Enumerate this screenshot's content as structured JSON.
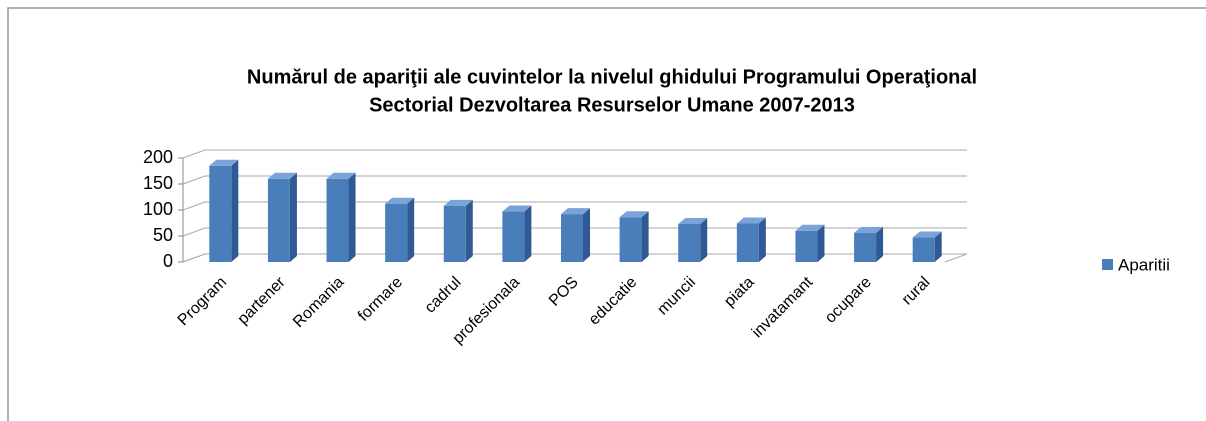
{
  "chart_data": {
    "type": "bar3d",
    "title": "Numărul de apariţii ale cuvintelor la nivelul ghidului Programului Operaţional",
    "subtitle": "Sectorial Dezvoltarea Resurselor Umane 2007-2013",
    "categories": [
      "Program",
      "partener",
      "Romania",
      "formare",
      "cadrul",
      "profesionala",
      "POS",
      "educatie",
      "muncii",
      "piata",
      "invatamant",
      "ocupare",
      "rural"
    ],
    "series": [
      {
        "name": "Aparitii",
        "color": "#4a7ebb",
        "values": [
          185,
          160,
          160,
          112,
          108,
          97,
          92,
          86,
          73,
          74,
          60,
          56,
          47
        ]
      }
    ],
    "ylim": [
      0,
      200
    ],
    "yticks": [
      0,
      50,
      100,
      150,
      200
    ],
    "grid": true,
    "legend": "right"
  }
}
